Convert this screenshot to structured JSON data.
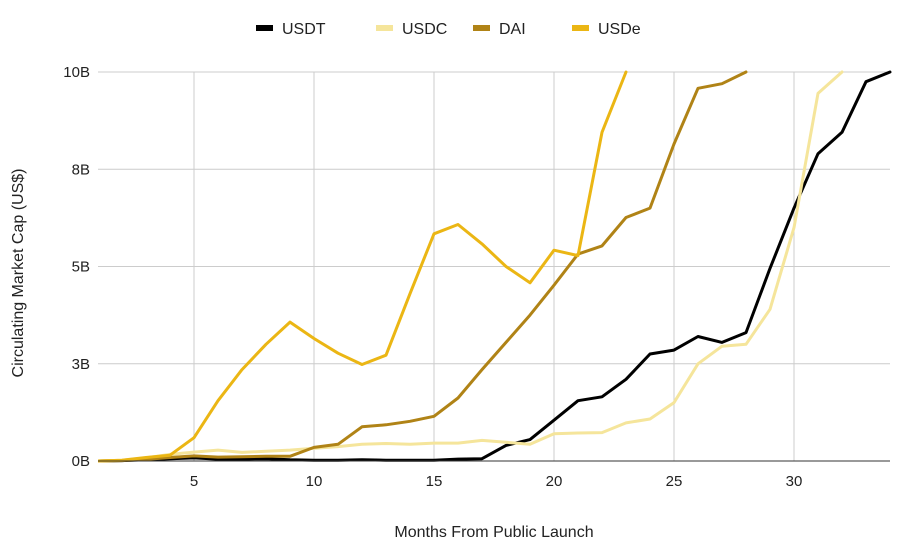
{
  "chart_data": {
    "type": "line",
    "title": "",
    "xlabel": "Months From Public Launch",
    "ylabel": "Circulating Market Cap (US$)",
    "xlim": [
      1,
      34
    ],
    "ylim": [
      0,
      10000000000
    ],
    "xticks": [
      {
        "value": 5,
        "label": "5"
      },
      {
        "value": 10,
        "label": "10"
      },
      {
        "value": 15,
        "label": "15"
      },
      {
        "value": 20,
        "label": "20"
      },
      {
        "value": 25,
        "label": "25"
      },
      {
        "value": 30,
        "label": "30"
      }
    ],
    "yticks": [
      {
        "value": 0,
        "label": "0B"
      },
      {
        "value": 2500000000,
        "label": "3B"
      },
      {
        "value": 5000000000,
        "label": "5B"
      },
      {
        "value": 7500000000,
        "label": "8B"
      },
      {
        "value": 10000000000,
        "label": "10B"
      }
    ],
    "grid": true,
    "legend_position": "top",
    "series": [
      {
        "name": "USDT",
        "color": "#000000",
        "points": [
          [
            1,
            0
          ],
          [
            2,
            10000000
          ],
          [
            3,
            30000000
          ],
          [
            4,
            60000000
          ],
          [
            5,
            80000000
          ],
          [
            6,
            50000000
          ],
          [
            7,
            50000000
          ],
          [
            8,
            60000000
          ],
          [
            9,
            30000000
          ],
          [
            10,
            20000000
          ],
          [
            11,
            20000000
          ],
          [
            12,
            30000000
          ],
          [
            13,
            20000000
          ],
          [
            14,
            20000000
          ],
          [
            15,
            20000000
          ],
          [
            16,
            50000000
          ],
          [
            17,
            60000000
          ],
          [
            18,
            400000000
          ],
          [
            19,
            550000000
          ],
          [
            20,
            1050000000
          ],
          [
            21,
            1550000000
          ],
          [
            22,
            1650000000
          ],
          [
            23,
            2100000000
          ],
          [
            24,
            2750000000
          ],
          [
            25,
            2850000000
          ],
          [
            26,
            3200000000
          ],
          [
            27,
            3050000000
          ],
          [
            28,
            3300000000
          ],
          [
            29,
            4950000000
          ],
          [
            30,
            6500000000
          ],
          [
            31,
            7900000000
          ],
          [
            32,
            8450000000
          ],
          [
            33,
            9750000000
          ],
          [
            34,
            10000000000
          ]
        ]
      },
      {
        "name": "USDC",
        "color": "#f5e59b",
        "points": [
          [
            1,
            0
          ],
          [
            2,
            20000000
          ],
          [
            3,
            80000000
          ],
          [
            4,
            170000000
          ],
          [
            5,
            230000000
          ],
          [
            6,
            280000000
          ],
          [
            7,
            220000000
          ],
          [
            8,
            250000000
          ],
          [
            9,
            280000000
          ],
          [
            10,
            330000000
          ],
          [
            11,
            370000000
          ],
          [
            12,
            430000000
          ],
          [
            13,
            450000000
          ],
          [
            14,
            430000000
          ],
          [
            15,
            460000000
          ],
          [
            16,
            460000000
          ],
          [
            17,
            530000000
          ],
          [
            18,
            480000000
          ],
          [
            19,
            430000000
          ],
          [
            20,
            700000000
          ],
          [
            21,
            720000000
          ],
          [
            22,
            730000000
          ],
          [
            23,
            980000000
          ],
          [
            24,
            1080000000
          ],
          [
            25,
            1500000000
          ],
          [
            26,
            2500000000
          ],
          [
            27,
            2950000000
          ],
          [
            28,
            3000000000
          ],
          [
            29,
            3900000000
          ],
          [
            30,
            6000000000
          ],
          [
            31,
            9450000000
          ],
          [
            32,
            10000000000
          ]
        ]
      },
      {
        "name": "DAI",
        "color": "#b08316",
        "points": [
          [
            1,
            0
          ],
          [
            2,
            10000000
          ],
          [
            3,
            40000000
          ],
          [
            4,
            90000000
          ],
          [
            5,
            130000000
          ],
          [
            6,
            100000000
          ],
          [
            7,
            110000000
          ],
          [
            8,
            120000000
          ],
          [
            9,
            120000000
          ],
          [
            10,
            350000000
          ],
          [
            11,
            430000000
          ],
          [
            12,
            880000000
          ],
          [
            13,
            930000000
          ],
          [
            14,
            1020000000
          ],
          [
            15,
            1150000000
          ],
          [
            16,
            1620000000
          ],
          [
            17,
            2350000000
          ],
          [
            18,
            3050000000
          ],
          [
            19,
            3750000000
          ],
          [
            20,
            4520000000
          ],
          [
            21,
            5320000000
          ],
          [
            22,
            5530000000
          ],
          [
            23,
            6260000000
          ],
          [
            24,
            6500000000
          ],
          [
            25,
            8150000000
          ],
          [
            26,
            9580000000
          ],
          [
            27,
            9700000000
          ],
          [
            28,
            10000000000
          ]
        ]
      },
      {
        "name": "USDe",
        "color": "#ebb614",
        "points": [
          [
            1,
            0
          ],
          [
            2,
            20000000
          ],
          [
            3,
            90000000
          ],
          [
            4,
            150000000
          ],
          [
            5,
            600000000
          ],
          [
            6,
            1550000000
          ],
          [
            7,
            2350000000
          ],
          [
            8,
            3000000000
          ],
          [
            9,
            3570000000
          ],
          [
            10,
            3150000000
          ],
          [
            11,
            2770000000
          ],
          [
            12,
            2480000000
          ],
          [
            13,
            2720000000
          ],
          [
            14,
            4300000000
          ],
          [
            15,
            5840000000
          ],
          [
            16,
            6080000000
          ],
          [
            17,
            5580000000
          ],
          [
            18,
            5000000000
          ],
          [
            19,
            4580000000
          ],
          [
            20,
            5420000000
          ],
          [
            21,
            5280000000
          ],
          [
            22,
            8450000000
          ],
          [
            23,
            10000000000
          ]
        ]
      }
    ]
  }
}
